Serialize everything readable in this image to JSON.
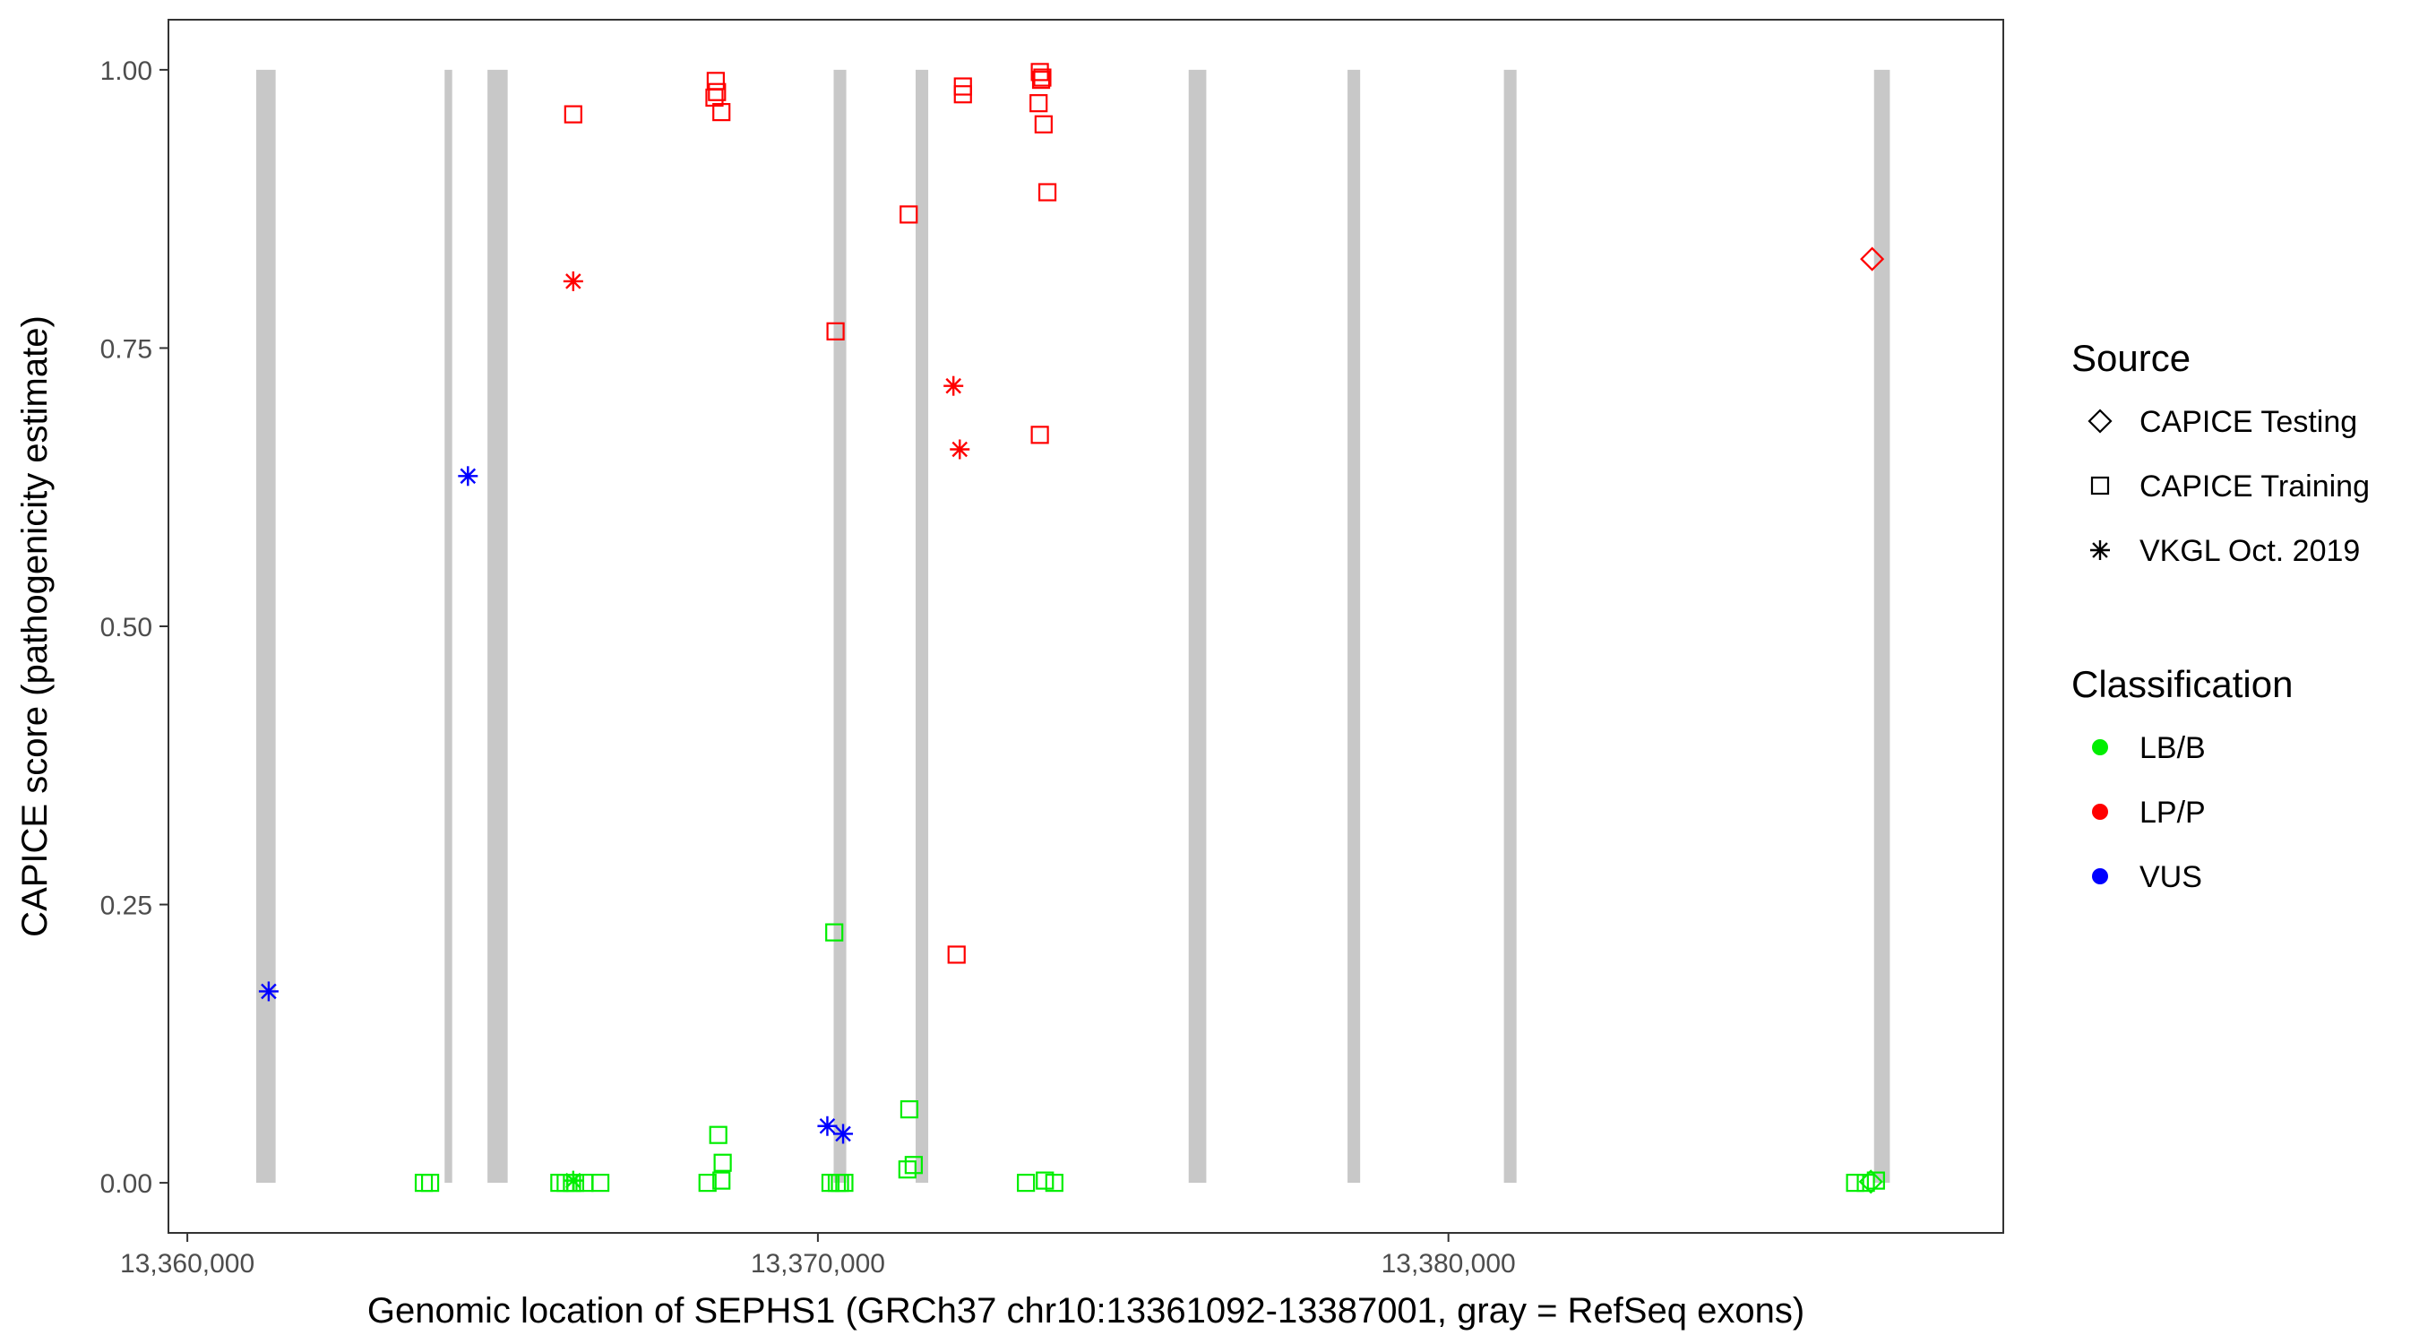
{
  "chart_data": {
    "type": "scatter",
    "title": "",
    "xlabel": "Genomic location of SEPHS1 (GRCh37 chr10:13361092-13387001, gray = RefSeq exons)",
    "ylabel": "CAPICE score (pathogenicity estimate)",
    "xlim": [
      13359700,
      13388800
    ],
    "ylim": [
      -0.045,
      1.045
    ],
    "x_ticks": [
      13360000,
      13370000,
      13380000
    ],
    "x_tick_labels": [
      "13,360,000",
      "13,370,000",
      "13,380,000"
    ],
    "y_ticks": [
      0,
      0.25,
      0.5,
      0.75,
      1.0
    ],
    "y_tick_labels": [
      "0.00",
      "0.25",
      "0.50",
      "0.75",
      "1.00"
    ],
    "grid": false,
    "exons": [
      [
        13361092,
        13361400
      ],
      [
        13364080,
        13364200
      ],
      [
        13364760,
        13365080
      ],
      [
        13370250,
        13370450
      ],
      [
        13371550,
        13371750
      ],
      [
        13375880,
        13376160
      ],
      [
        13378400,
        13378600
      ],
      [
        13380880,
        13381080
      ],
      [
        13386750,
        13387001
      ]
    ],
    "legend": {
      "position": "right",
      "source_title": "Source",
      "classification_title": "Classification",
      "source_items": [
        {
          "label": "CAPICE Testing",
          "shape": "diamond"
        },
        {
          "label": "CAPICE Training",
          "shape": "square"
        },
        {
          "label": "VKGL Oct. 2019",
          "shape": "asterisk"
        }
      ],
      "classification_items": [
        {
          "label": "LB/B",
          "color": "#00ee00"
        },
        {
          "label": "LP/P",
          "color": "#ff0000"
        },
        {
          "label": "VUS",
          "color": "#0000ff"
        }
      ]
    },
    "series": [
      {
        "source": "CAPICE Testing",
        "classification": "LP/P",
        "points": [
          [
            13386720,
            0.83
          ]
        ]
      },
      {
        "source": "CAPICE Testing",
        "classification": "LB/B",
        "points": [
          [
            13386700,
            0.001
          ]
        ]
      },
      {
        "source": "CAPICE Training",
        "classification": "LP/P",
        "points": [
          [
            13366120,
            0.96
          ],
          [
            13368380,
            0.99
          ],
          [
            13368400,
            0.98
          ],
          [
            13368360,
            0.975
          ],
          [
            13368470,
            0.962
          ],
          [
            13370280,
            0.765
          ],
          [
            13371440,
            0.87
          ],
          [
            13372200,
            0.205
          ],
          [
            13372300,
            0.985
          ],
          [
            13372300,
            0.978
          ],
          [
            13373520,
            0.998
          ],
          [
            13373560,
            0.993
          ],
          [
            13373540,
            0.991
          ],
          [
            13373500,
            0.97
          ],
          [
            13373580,
            0.951
          ],
          [
            13373640,
            0.89
          ],
          [
            13373520,
            0.672
          ]
        ]
      },
      {
        "source": "CAPICE Training",
        "classification": "LB/B",
        "points": [
          [
            13363750,
            0.0
          ],
          [
            13363850,
            0.0
          ],
          [
            13365900,
            0.0
          ],
          [
            13366000,
            0.0
          ],
          [
            13366100,
            0.0
          ],
          [
            13366150,
            0.0
          ],
          [
            13366300,
            0.0
          ],
          [
            13366550,
            0.0
          ],
          [
            13368250,
            0.0
          ],
          [
            13368420,
            0.043
          ],
          [
            13368490,
            0.018
          ],
          [
            13368470,
            0.002
          ],
          [
            13370260,
            0.225
          ],
          [
            13370200,
            0.0
          ],
          [
            13370300,
            0.0
          ],
          [
            13370350,
            0.0
          ],
          [
            13370420,
            0.0
          ],
          [
            13371450,
            0.066
          ],
          [
            13371520,
            0.016
          ],
          [
            13371420,
            0.012
          ],
          [
            13373300,
            0.0
          ],
          [
            13373600,
            0.002
          ],
          [
            13373750,
            0.0
          ],
          [
            13386450,
            0.0
          ],
          [
            13386620,
            0.0
          ],
          [
            13386780,
            0.002
          ]
        ]
      },
      {
        "source": "VKGL Oct. 2019",
        "classification": "LP/P",
        "points": [
          [
            13366120,
            0.81
          ],
          [
            13372150,
            0.716
          ],
          [
            13372250,
            0.659
          ]
        ]
      },
      {
        "source": "VKGL Oct. 2019",
        "classification": "VUS",
        "points": [
          [
            13361290,
            0.172
          ],
          [
            13364450,
            0.635
          ],
          [
            13370150,
            0.051
          ],
          [
            13370400,
            0.044
          ]
        ]
      },
      {
        "source": "VKGL Oct. 2019",
        "classification": "LB/B",
        "points": [
          [
            13366120,
            0.002
          ]
        ]
      }
    ]
  }
}
